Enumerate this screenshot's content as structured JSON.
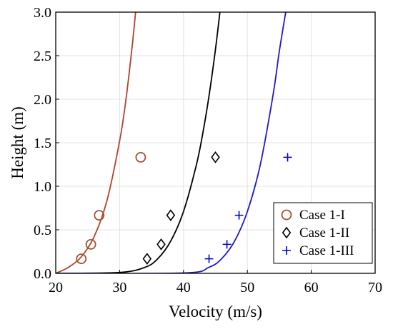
{
  "chart_data": {
    "type": "scatter",
    "xlabel": "Velocity (m/s)",
    "ylabel": "Height (m)",
    "xlim": [
      20,
      70
    ],
    "ylim": [
      0,
      3.0
    ],
    "xticks": [
      "20",
      "30",
      "40",
      "50",
      "60",
      "70"
    ],
    "yticks": [
      "0.0",
      "0.5",
      "1.0",
      "1.5",
      "2.0",
      "2.5",
      "3.0"
    ],
    "grid": true,
    "legend_position": "bottom-right",
    "series": [
      {
        "name": "Case 1-I",
        "marker": "circle",
        "color": "#a0522d",
        "points": [
          {
            "x": 24.0,
            "y": 0.167
          },
          {
            "x": 25.5,
            "y": 0.333
          },
          {
            "x": 26.8,
            "y": 0.667
          },
          {
            "x": 33.3,
            "y": 1.333
          }
        ]
      },
      {
        "name": "Case 1-II",
        "marker": "diamond",
        "color": "#000000",
        "points": [
          {
            "x": 34.3,
            "y": 0.167
          },
          {
            "x": 36.5,
            "y": 0.333
          },
          {
            "x": 38.0,
            "y": 0.667
          },
          {
            "x": 45.0,
            "y": 1.333
          }
        ]
      },
      {
        "name": "Case 1-III",
        "marker": "plus",
        "color": "#0000cc",
        "points": [
          {
            "x": 44.0,
            "y": 0.167
          },
          {
            "x": 46.8,
            "y": 0.333
          },
          {
            "x": 48.7,
            "y": 0.667
          },
          {
            "x": 56.3,
            "y": 1.333
          }
        ]
      }
    ],
    "fit_curves": [
      {
        "color": "#b5412d",
        "points": [
          {
            "x": 20.0,
            "y": 0.0
          },
          {
            "x": 22.0,
            "y": 0.07
          },
          {
            "x": 24.0,
            "y": 0.19
          },
          {
            "x": 26.0,
            "y": 0.42
          },
          {
            "x": 28.0,
            "y": 0.83
          },
          {
            "x": 30.0,
            "y": 1.52
          },
          {
            "x": 31.0,
            "y": 2.0
          },
          {
            "x": 32.0,
            "y": 2.63
          },
          {
            "x": 32.5,
            "y": 3.0
          }
        ]
      },
      {
        "color": "#000000",
        "points": [
          {
            "x": 20.0,
            "y": 0.0
          },
          {
            "x": 30.0,
            "y": 0.01
          },
          {
            "x": 34.0,
            "y": 0.07
          },
          {
            "x": 36.0,
            "y": 0.17
          },
          {
            "x": 38.0,
            "y": 0.37
          },
          {
            "x": 40.0,
            "y": 0.71
          },
          {
            "x": 42.0,
            "y": 1.24
          },
          {
            "x": 43.0,
            "y": 1.6
          },
          {
            "x": 44.0,
            "y": 2.04
          },
          {
            "x": 45.0,
            "y": 2.57
          },
          {
            "x": 45.7,
            "y": 3.0
          }
        ]
      },
      {
        "color": "#1a1acc",
        "points": [
          {
            "x": 20.0,
            "y": 0.0
          },
          {
            "x": 40.0,
            "y": 0.004
          },
          {
            "x": 44.0,
            "y": 0.07
          },
          {
            "x": 46.0,
            "y": 0.17
          },
          {
            "x": 48.0,
            "y": 0.37
          },
          {
            "x": 50.0,
            "y": 0.71
          },
          {
            "x": 52.0,
            "y": 1.24
          },
          {
            "x": 54.0,
            "y": 2.04
          },
          {
            "x": 55.0,
            "y": 2.55
          },
          {
            "x": 56.0,
            "y": 3.0
          }
        ]
      }
    ]
  }
}
